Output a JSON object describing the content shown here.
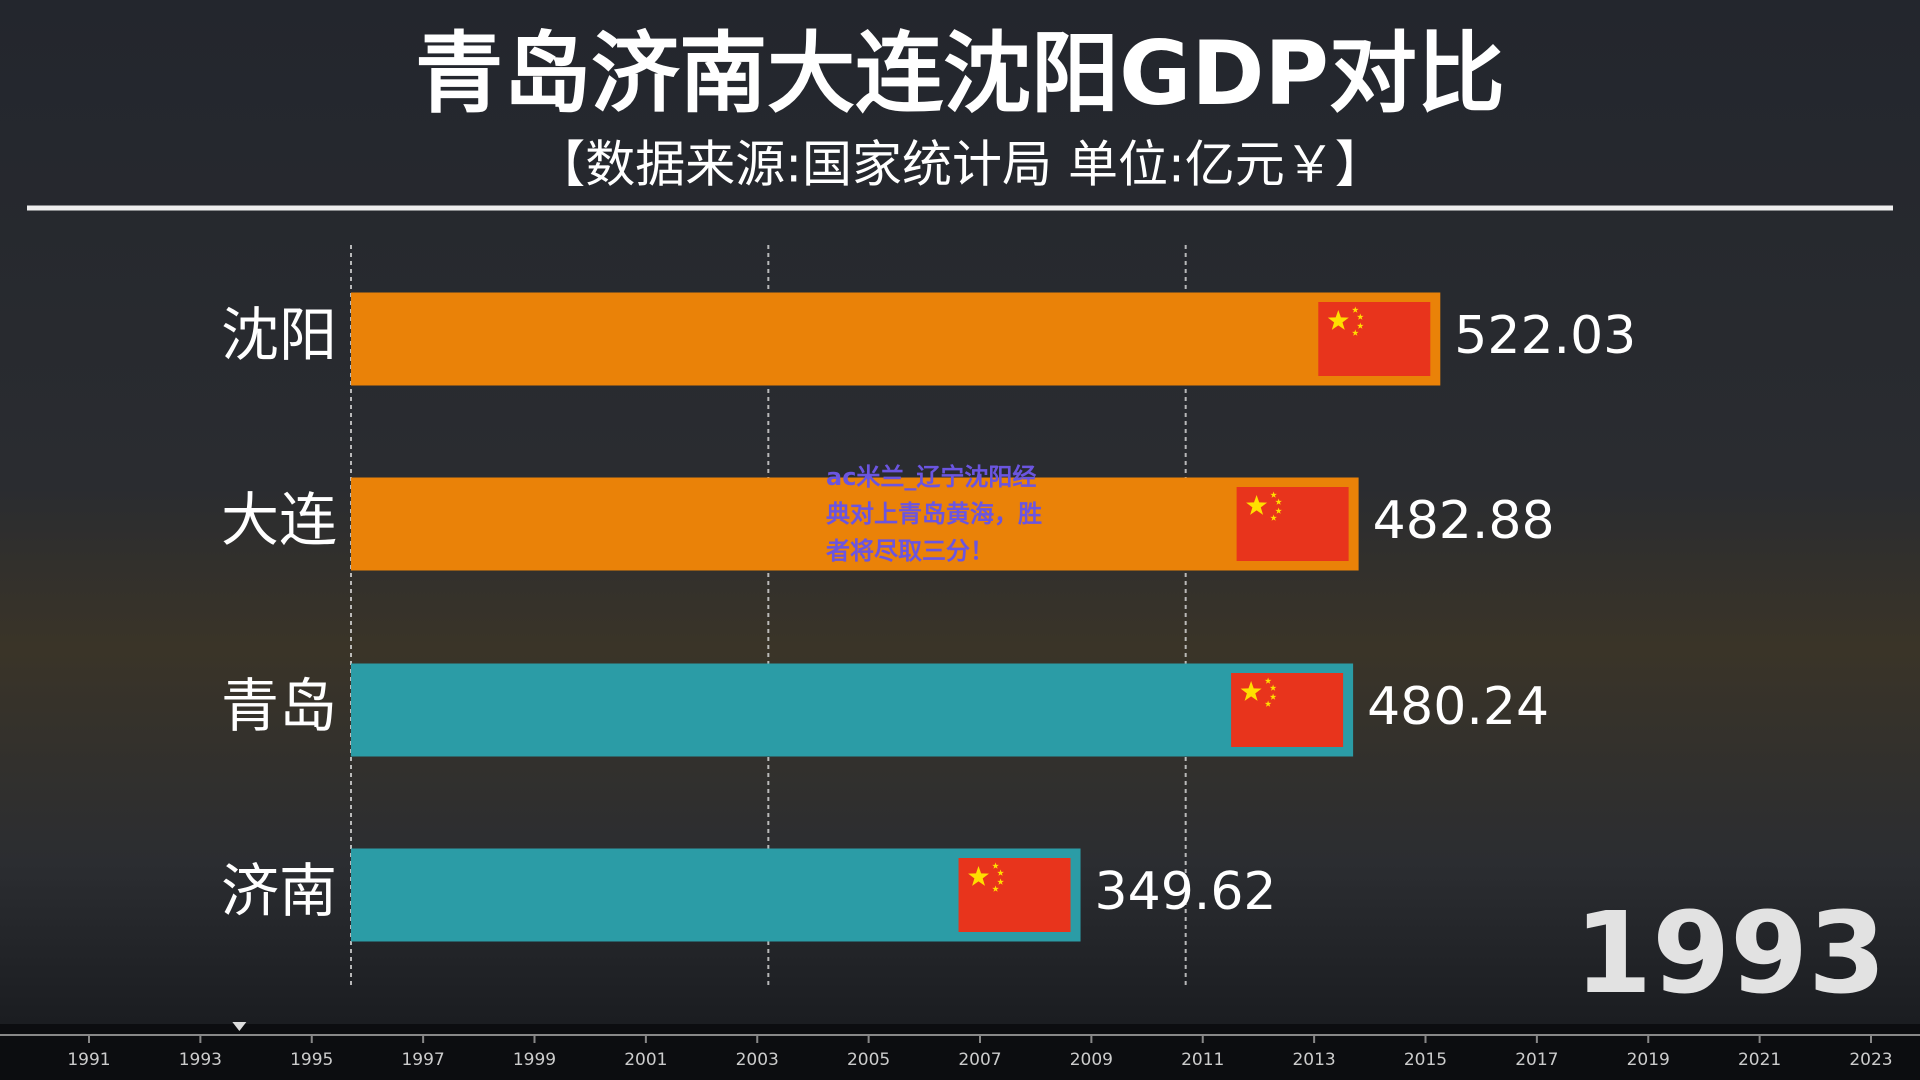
{
  "chart_data": {
    "type": "barh",
    "title": "青岛济南大连沈阳GDP对比",
    "subtitle": "【数据来源:国家统计局 单位:亿元￥】",
    "categories": [
      "沈阳",
      "大连",
      "青岛",
      "济南"
    ],
    "values": [
      522.03,
      482.88,
      480.24,
      349.62
    ],
    "colors": [
      "#ea8208",
      "#ea8208",
      "#2b9ca6",
      "#2b9ca6"
    ],
    "xlim": [
      0,
      600
    ],
    "xticks": [
      0,
      200,
      400
    ],
    "grid": true,
    "year": "1993",
    "timeline": {
      "ticks": [
        1991,
        1993,
        1995,
        1997,
        1999,
        2001,
        2003,
        2005,
        2007,
        2009,
        2011,
        2013,
        2015,
        2017,
        2019,
        2021,
        2023
      ],
      "marker": 1993.7
    },
    "annotation": "ac米兰_辽宁沈阳经典对上青岛黄海，胜者将尽取三分！"
  }
}
